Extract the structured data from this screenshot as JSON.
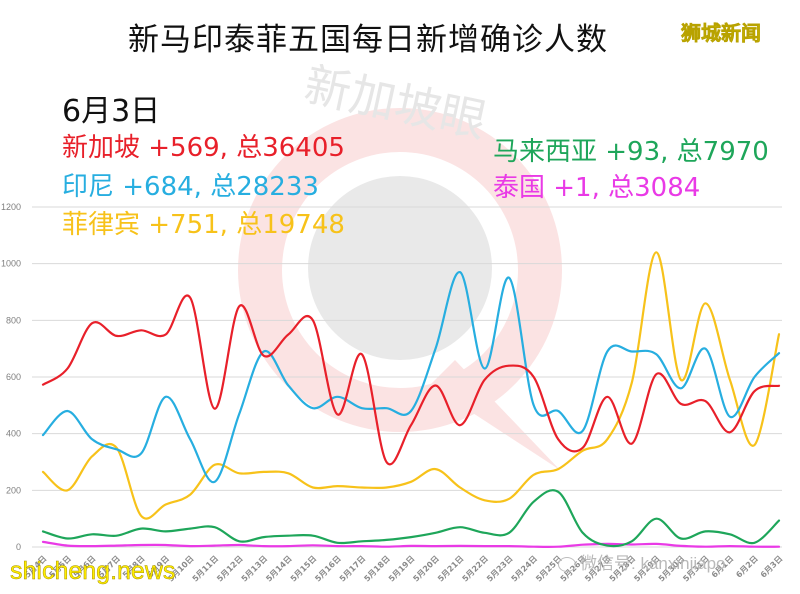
{
  "header": {
    "title": "新马印泰菲五国每日新增确诊人数",
    "brand": "狮城新闻"
  },
  "summary": {
    "date": "6月3日",
    "items": [
      {
        "country": "新加坡",
        "text": "新加坡 +569, 总36405",
        "new": 569,
        "total": 36405,
        "color": "#e8202a"
      },
      {
        "country": "印尼",
        "text": "印尼 +684, 总28233",
        "new": 684,
        "total": 28233,
        "color": "#27aee0"
      },
      {
        "country": "菲律宾",
        "text": "菲律宾 +751, 总19748",
        "new": 751,
        "total": 19748,
        "color": "#f7c21a"
      },
      {
        "country": "马来西亚",
        "text": "马来西亚 +93, 总7970",
        "new": 93,
        "total": 7970,
        "color": "#1ea65a"
      },
      {
        "country": "泰国",
        "text": "泰国 +1, 总3084",
        "new": 1,
        "total": 3084,
        "color": "#e93ae6"
      }
    ]
  },
  "watermarks": {
    "site": "shicheng.news",
    "wechat": "微信号: kanxinjiapo",
    "center": "新加坡眼"
  },
  "chart_data": {
    "type": "line",
    "title": "新马印泰菲五国每日新增确诊人数",
    "xlabel": "",
    "ylabel": "",
    "ylim": [
      0,
      1200
    ],
    "yticks": [
      0,
      200,
      400,
      600,
      800,
      1000,
      1200
    ],
    "grid": true,
    "legend_position": "top (text annotations)",
    "categories": [
      "5月4日",
      "5月5日",
      "5月6日",
      "5月7日",
      "5月8日",
      "5月9日",
      "5月10日",
      "5月11日",
      "5月12日",
      "5月13日",
      "5月14日",
      "5月15日",
      "5月16日",
      "5月17日",
      "5月18日",
      "5月19日",
      "5月20日",
      "5月21日",
      "5月22日",
      "5月23日",
      "5月24日",
      "5月25日",
      "5月26日",
      "5月27日",
      "5月28日",
      "5月29日",
      "5月30日",
      "5月31日",
      "6月1日",
      "6月2日",
      "6月3日"
    ],
    "series": [
      {
        "name": "新加坡",
        "color": "#e8202a",
        "values": [
          573,
          630,
          790,
          745,
          765,
          750,
          880,
          488,
          850,
          675,
          750,
          800,
          468,
          680,
          300,
          430,
          570,
          430,
          590,
          640,
          600,
          380,
          350,
          530,
          365,
          610,
          505,
          515,
          405,
          550,
          569
        ]
      },
      {
        "name": "印尼",
        "color": "#27aee0",
        "values": [
          395,
          480,
          380,
          345,
          330,
          530,
          380,
          230,
          470,
          690,
          570,
          490,
          530,
          490,
          490,
          480,
          700,
          970,
          630,
          950,
          500,
          480,
          410,
          690,
          690,
          680,
          560,
          700,
          460,
          600,
          684
        ]
      },
      {
        "name": "菲律宾",
        "color": "#f7c21a",
        "values": [
          265,
          200,
          320,
          350,
          110,
          150,
          185,
          290,
          260,
          265,
          260,
          210,
          215,
          210,
          210,
          230,
          275,
          210,
          165,
          170,
          255,
          275,
          340,
          380,
          580,
          1040,
          590,
          860,
          590,
          360,
          751
        ]
      },
      {
        "name": "马来西亚",
        "color": "#1ea65a",
        "values": [
          55,
          30,
          45,
          40,
          65,
          55,
          65,
          70,
          20,
          35,
          40,
          40,
          15,
          20,
          25,
          35,
          50,
          70,
          50,
          50,
          160,
          195,
          50,
          5,
          20,
          100,
          30,
          55,
          45,
          15,
          93
        ]
      },
      {
        "name": "泰国",
        "color": "#e93ae6",
        "values": [
          18,
          5,
          3,
          5,
          7,
          7,
          3,
          5,
          7,
          3,
          3,
          6,
          3,
          3,
          1,
          4,
          3,
          4,
          3,
          3,
          1,
          1,
          8,
          11,
          9,
          11,
          4,
          1,
          3,
          1,
          1
        ]
      }
    ]
  }
}
